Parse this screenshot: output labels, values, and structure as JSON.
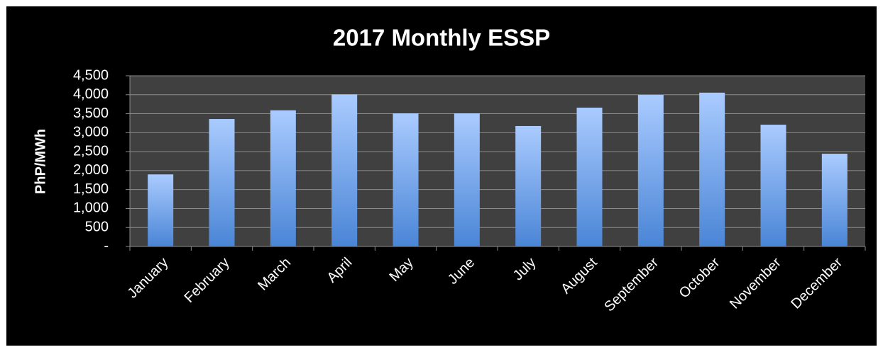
{
  "chart_data": {
    "type": "bar",
    "title": "2017 Monthly ESSP",
    "y_label": "PhP/MWh",
    "categories": [
      "January",
      "February",
      "March",
      "April",
      "May",
      "June",
      "July",
      "August",
      "September",
      "October",
      "November",
      "December"
    ],
    "values": [
      1900,
      3360,
      3590,
      4010,
      3510,
      3510,
      3175,
      3660,
      3995,
      4055,
      3210,
      2445
    ],
    "color": "#4a85d6",
    "color_top": "#aacbff",
    "ylim": [
      0,
      4500
    ],
    "yticks": [
      {
        "value": 0,
        "label": "-"
      },
      500,
      {
        "value": 1000,
        "label": "1,000"
      },
      {
        "value": 1500,
        "label": "1,500"
      },
      {
        "value": 2000,
        "label": "2,000"
      },
      {
        "value": 2500,
        "label": "2,500"
      },
      {
        "value": 3000,
        "label": "3,000"
      },
      {
        "value": 3500,
        "label": "3,500"
      },
      {
        "value": 4000,
        "label": "4,000"
      },
      {
        "value": 4500,
        "label": "4,500"
      }
    ],
    "grid": true
  }
}
